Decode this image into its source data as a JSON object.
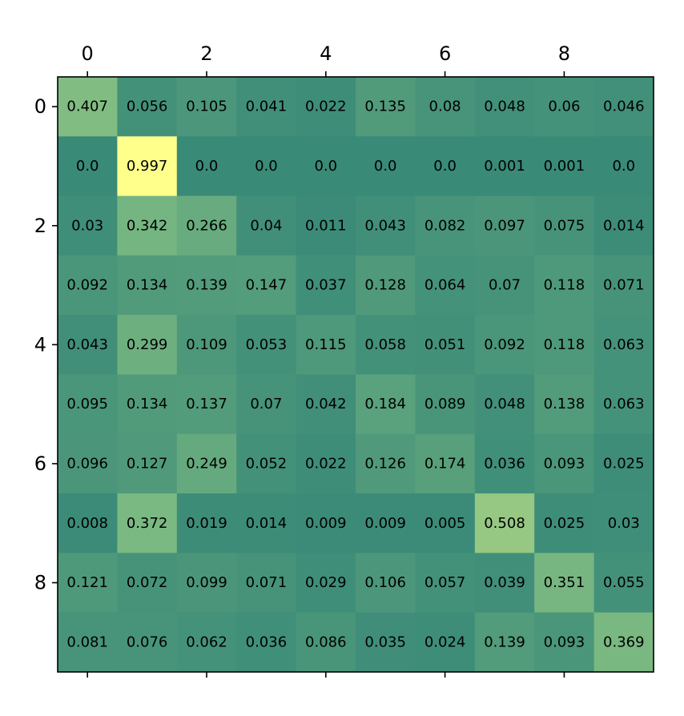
{
  "chart_data": {
    "type": "heatmap",
    "title": "",
    "xlabel": "",
    "ylabel": "",
    "x_ticks": [
      "0",
      "2",
      "4",
      "6",
      "8"
    ],
    "y_ticks": [
      "0",
      "2",
      "4",
      "6",
      "8"
    ],
    "x_tick_positions": [
      0,
      2,
      4,
      6,
      8
    ],
    "y_tick_positions": [
      0,
      2,
      4,
      6,
      8
    ],
    "x_axis_position": "top",
    "colorbar": false,
    "grid": false,
    "value_range": [
      0.0,
      0.997
    ],
    "colors": {
      "min": "#3a8a78",
      "mid": "#7fbc82",
      "max": "#ffff8c",
      "frame": "#000000",
      "cell_text": "#000000"
    },
    "values": [
      [
        0.407,
        0.056,
        0.105,
        0.041,
        0.022,
        0.135,
        0.08,
        0.048,
        0.06,
        0.046
      ],
      [
        0.0,
        0.997,
        0.0,
        0.0,
        0.0,
        0.0,
        0.0,
        0.001,
        0.001,
        0.0
      ],
      [
        0.03,
        0.342,
        0.266,
        0.04,
        0.011,
        0.043,
        0.082,
        0.097,
        0.075,
        0.014
      ],
      [
        0.092,
        0.134,
        0.139,
        0.147,
        0.037,
        0.128,
        0.064,
        0.07,
        0.118,
        0.071
      ],
      [
        0.043,
        0.299,
        0.109,
        0.053,
        0.115,
        0.058,
        0.051,
        0.092,
        0.118,
        0.063
      ],
      [
        0.095,
        0.134,
        0.137,
        0.07,
        0.042,
        0.184,
        0.089,
        0.048,
        0.138,
        0.063
      ],
      [
        0.096,
        0.127,
        0.249,
        0.052,
        0.022,
        0.126,
        0.174,
        0.036,
        0.093,
        0.025
      ],
      [
        0.008,
        0.372,
        0.019,
        0.014,
        0.009,
        0.009,
        0.005,
        0.508,
        0.025,
        0.03
      ],
      [
        0.121,
        0.072,
        0.099,
        0.071,
        0.029,
        0.106,
        0.057,
        0.039,
        0.351,
        0.055
      ],
      [
        0.081,
        0.076,
        0.062,
        0.036,
        0.086,
        0.035,
        0.024,
        0.139,
        0.093,
        0.369
      ]
    ],
    "value_labels": [
      [
        "0.407",
        "0.056",
        "0.105",
        "0.041",
        "0.022",
        "0.135",
        "0.08",
        "0.048",
        "0.06",
        "0.046"
      ],
      [
        "0.0",
        "0.997",
        "0.0",
        "0.0",
        "0.0",
        "0.0",
        "0.0",
        "0.001",
        "0.001",
        "0.0"
      ],
      [
        "0.03",
        "0.342",
        "0.266",
        "0.04",
        "0.011",
        "0.043",
        "0.082",
        "0.097",
        "0.075",
        "0.014"
      ],
      [
        "0.092",
        "0.134",
        "0.139",
        "0.147",
        "0.037",
        "0.128",
        "0.064",
        "0.07",
        "0.118",
        "0.071"
      ],
      [
        "0.043",
        "0.299",
        "0.109",
        "0.053",
        "0.115",
        "0.058",
        "0.051",
        "0.092",
        "0.118",
        "0.063"
      ],
      [
        "0.095",
        "0.134",
        "0.137",
        "0.07",
        "0.042",
        "0.184",
        "0.089",
        "0.048",
        "0.138",
        "0.063"
      ],
      [
        "0.096",
        "0.127",
        "0.249",
        "0.052",
        "0.022",
        "0.126",
        "0.174",
        "0.036",
        "0.093",
        "0.025"
      ],
      [
        "0.008",
        "0.372",
        "0.019",
        "0.014",
        "0.009",
        "0.009",
        "0.005",
        "0.508",
        "0.025",
        "0.03"
      ],
      [
        "0.121",
        "0.072",
        "0.099",
        "0.071",
        "0.029",
        "0.106",
        "0.057",
        "0.039",
        "0.351",
        "0.055"
      ],
      [
        "0.081",
        "0.076",
        "0.062",
        "0.036",
        "0.086",
        "0.035",
        "0.024",
        "0.139",
        "0.093",
        "0.369"
      ]
    ]
  }
}
